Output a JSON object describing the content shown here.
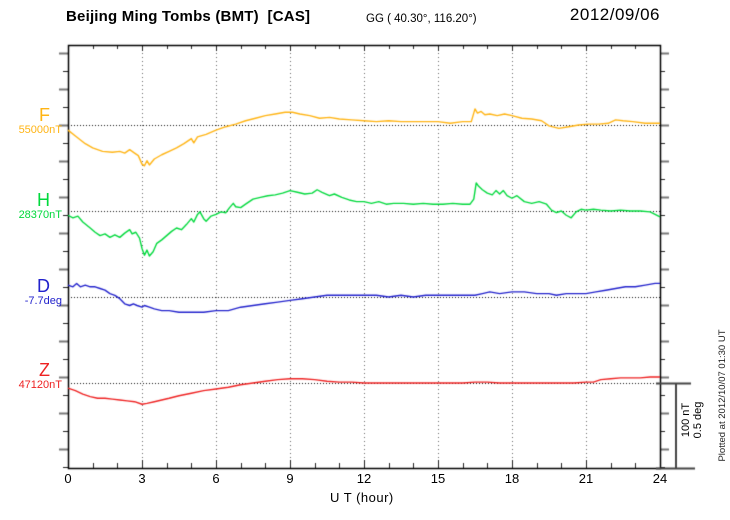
{
  "header": {
    "station_title": "Beijing Ming Tombs (BMT)  [CAS]",
    "coords": "GG ( 40.30°, 116.20°)",
    "date": "2012/09/06"
  },
  "xaxis": {
    "ticks": [
      "0",
      "3",
      "6",
      "9",
      "12",
      "15",
      "18",
      "21",
      "24"
    ],
    "label": "U T (hour)"
  },
  "scalebar": {
    "line1": "100 nT",
    "line2": "0.5 deg"
  },
  "footnote": "Plotted at 2012/10/07 01:30 UT",
  "colors": {
    "frame": "#000000",
    "grid": "#666666",
    "refline": "#111111",
    "tick_long": "#777777",
    "tick_short": "#222222",
    "scalebar": "#444444"
  },
  "chart_data": {
    "type": "line",
    "title": "Beijing Ming Tombs (BMT) magnetogram",
    "xlabel": "U T (hour)",
    "x_range": [
      0,
      24
    ],
    "x_major_step": 3,
    "x_minor_step": 1,
    "grid": "dotted-vertical-at-3h",
    "scale_per_division": {
      "nT": 100,
      "deg": 0.5
    },
    "series": [
      {
        "id": "F",
        "label": "F",
        "unit": "nT",
        "baseline_label": "55000nT",
        "baseline_value": 55000,
        "color": "#ffb414",
        "points_are": [
          "hour_UT",
          "offset_from_baseline_nT"
        ],
        "points": [
          [
            0,
            -6
          ],
          [
            0.3,
            -13
          ],
          [
            0.7,
            -22
          ],
          [
            1,
            -27
          ],
          [
            1.4,
            -31
          ],
          [
            1.8,
            -32
          ],
          [
            2.1,
            -31
          ],
          [
            2.3,
            -33
          ],
          [
            2.5,
            -29
          ],
          [
            2.7,
            -33
          ],
          [
            2.85,
            -36
          ],
          [
            3,
            -46
          ],
          [
            3.1,
            -48
          ],
          [
            3.2,
            -42
          ],
          [
            3.3,
            -47
          ],
          [
            3.5,
            -40
          ],
          [
            3.8,
            -35
          ],
          [
            4.1,
            -31
          ],
          [
            4.4,
            -27
          ],
          [
            4.7,
            -22
          ],
          [
            5,
            -16
          ],
          [
            5.1,
            -21
          ],
          [
            5.25,
            -14
          ],
          [
            5.6,
            -11
          ],
          [
            6,
            -6
          ],
          [
            6.4,
            -2
          ],
          [
            6.8,
            1
          ],
          [
            7.2,
            5
          ],
          [
            7.6,
            8
          ],
          [
            8,
            11
          ],
          [
            8.4,
            13
          ],
          [
            8.8,
            15
          ],
          [
            9.1,
            15
          ],
          [
            9.4,
            13
          ],
          [
            9.8,
            11
          ],
          [
            10.2,
            8
          ],
          [
            10.6,
            9
          ],
          [
            11,
            7
          ],
          [
            11.5,
            6
          ],
          [
            12,
            5
          ],
          [
            12.5,
            4
          ],
          [
            13,
            5
          ],
          [
            13.5,
            4
          ],
          [
            14,
            4
          ],
          [
            14.5,
            4
          ],
          [
            15,
            4
          ],
          [
            15.5,
            2
          ],
          [
            16,
            4
          ],
          [
            16.35,
            4
          ],
          [
            16.5,
            19
          ],
          [
            16.6,
            14
          ],
          [
            16.75,
            16
          ],
          [
            16.9,
            12
          ],
          [
            17.1,
            13
          ],
          [
            17.4,
            11
          ],
          [
            17.7,
            13
          ],
          [
            18,
            11
          ],
          [
            18.4,
            8
          ],
          [
            18.8,
            7
          ],
          [
            19.2,
            5
          ],
          [
            19.5,
            -1
          ],
          [
            19.9,
            -4
          ],
          [
            20.3,
            -2
          ],
          [
            20.7,
            0
          ],
          [
            21.1,
            1
          ],
          [
            21.5,
            1
          ],
          [
            21.9,
            2
          ],
          [
            22.2,
            6
          ],
          [
            22.5,
            5
          ],
          [
            22.9,
            4
          ],
          [
            23.4,
            2
          ],
          [
            24,
            2
          ]
        ]
      },
      {
        "id": "H",
        "label": "H",
        "unit": "nT",
        "baseline_label": "28370nT",
        "baseline_value": 28370,
        "color": "#00d93c",
        "points_are": [
          "hour_UT",
          "offset_from_baseline_nT"
        ],
        "points": [
          [
            0,
            -5
          ],
          [
            0.2,
            -8
          ],
          [
            0.4,
            -6
          ],
          [
            0.6,
            -13
          ],
          [
            0.9,
            -20
          ],
          [
            1.1,
            -25
          ],
          [
            1.3,
            -29
          ],
          [
            1.5,
            -27
          ],
          [
            1.7,
            -31
          ],
          [
            1.9,
            -28
          ],
          [
            2.1,
            -31
          ],
          [
            2.3,
            -26
          ],
          [
            2.5,
            -22
          ],
          [
            2.6,
            -27
          ],
          [
            2.75,
            -25
          ],
          [
            2.9,
            -32
          ],
          [
            3,
            -44
          ],
          [
            3.1,
            -52
          ],
          [
            3.2,
            -46
          ],
          [
            3.3,
            -53
          ],
          [
            3.45,
            -48
          ],
          [
            3.6,
            -38
          ],
          [
            3.8,
            -34
          ],
          [
            4,
            -29
          ],
          [
            4.2,
            -24
          ],
          [
            4.4,
            -20
          ],
          [
            4.6,
            -22
          ],
          [
            4.8,
            -16
          ],
          [
            5,
            -9
          ],
          [
            5.1,
            -13
          ],
          [
            5.25,
            -4
          ],
          [
            5.35,
            -1
          ],
          [
            5.5,
            -9
          ],
          [
            5.6,
            -12
          ],
          [
            5.8,
            -6
          ],
          [
            6,
            -4
          ],
          [
            6.2,
            -1
          ],
          [
            6.4,
            -2
          ],
          [
            6.55,
            4
          ],
          [
            6.7,
            9
          ],
          [
            6.8,
            5
          ],
          [
            7,
            4
          ],
          [
            7.2,
            8
          ],
          [
            7.5,
            14
          ],
          [
            7.8,
            16
          ],
          [
            8.1,
            18
          ],
          [
            8.4,
            19
          ],
          [
            8.7,
            21
          ],
          [
            9,
            24
          ],
          [
            9.3,
            22
          ],
          [
            9.6,
            20
          ],
          [
            9.9,
            21
          ],
          [
            10.1,
            25
          ],
          [
            10.3,
            22
          ],
          [
            10.6,
            18
          ],
          [
            10.8,
            20
          ],
          [
            11.1,
            16
          ],
          [
            11.4,
            13
          ],
          [
            11.7,
            11
          ],
          [
            12,
            11
          ],
          [
            12.3,
            9
          ],
          [
            12.6,
            11
          ],
          [
            12.9,
            8
          ],
          [
            13.2,
            9
          ],
          [
            13.6,
            9
          ],
          [
            14,
            8
          ],
          [
            14.4,
            9
          ],
          [
            14.8,
            8
          ],
          [
            15.2,
            8
          ],
          [
            15.6,
            9
          ],
          [
            16,
            8
          ],
          [
            16.3,
            8
          ],
          [
            16.45,
            14
          ],
          [
            16.55,
            33
          ],
          [
            16.65,
            29
          ],
          [
            16.8,
            25
          ],
          [
            17,
            21
          ],
          [
            17.2,
            19
          ],
          [
            17.35,
            24
          ],
          [
            17.5,
            20
          ],
          [
            17.65,
            24
          ],
          [
            17.8,
            18
          ],
          [
            18,
            15
          ],
          [
            18.2,
            18
          ],
          [
            18.5,
            11
          ],
          [
            18.8,
            9
          ],
          [
            19.1,
            11
          ],
          [
            19.4,
            8
          ],
          [
            19.6,
            1
          ],
          [
            19.8,
            -2
          ],
          [
            20,
            0
          ],
          [
            20.2,
            -5
          ],
          [
            20.4,
            -8
          ],
          [
            20.6,
            -1
          ],
          [
            20.8,
            2
          ],
          [
            21,
            1
          ],
          [
            21.3,
            2
          ],
          [
            21.6,
            1
          ],
          [
            22,
            0
          ],
          [
            22.4,
            1
          ],
          [
            22.8,
            0
          ],
          [
            23.2,
            0
          ],
          [
            23.6,
            -1
          ],
          [
            24,
            -7
          ]
        ]
      },
      {
        "id": "D",
        "label": "D",
        "unit": "deg",
        "baseline_label": "-7.7deg",
        "baseline_value": -7.7,
        "color": "#2222cc",
        "points_are": [
          "hour_UT",
          "offset_from_baseline_deg"
        ],
        "points": [
          [
            0,
            0.07
          ],
          [
            0.2,
            0.06
          ],
          [
            0.35,
            0.08
          ],
          [
            0.5,
            0.06
          ],
          [
            0.7,
            0.07
          ],
          [
            0.9,
            0.06
          ],
          [
            1.1,
            0.06
          ],
          [
            1.3,
            0.05
          ],
          [
            1.5,
            0.04
          ],
          [
            1.7,
            0.02
          ],
          [
            1.9,
            0.01
          ],
          [
            2.1,
            -0.01
          ],
          [
            2.3,
            -0.04
          ],
          [
            2.5,
            -0.05
          ],
          [
            2.65,
            -0.04
          ],
          [
            2.8,
            -0.05
          ],
          [
            3,
            -0.06
          ],
          [
            3.1,
            -0.05
          ],
          [
            3.3,
            -0.06
          ],
          [
            3.5,
            -0.07
          ],
          [
            3.8,
            -0.08
          ],
          [
            4.1,
            -0.08
          ],
          [
            4.5,
            -0.09
          ],
          [
            5,
            -0.09
          ],
          [
            5.5,
            -0.09
          ],
          [
            6,
            -0.08
          ],
          [
            6.5,
            -0.08
          ],
          [
            7,
            -0.06
          ],
          [
            7.5,
            -0.05
          ],
          [
            8,
            -0.04
          ],
          [
            8.5,
            -0.03
          ],
          [
            9,
            -0.02
          ],
          [
            9.5,
            -0.01
          ],
          [
            10,
            0
          ],
          [
            10.5,
            0.01
          ],
          [
            11,
            0.01
          ],
          [
            11.5,
            0.01
          ],
          [
            12,
            0.01
          ],
          [
            12.5,
            0.01
          ],
          [
            13,
            0
          ],
          [
            13.5,
            0.01
          ],
          [
            14,
            0
          ],
          [
            14.5,
            0.01
          ],
          [
            15,
            0.01
          ],
          [
            15.5,
            0.01
          ],
          [
            16,
            0.01
          ],
          [
            16.5,
            0.01
          ],
          [
            16.8,
            0.02
          ],
          [
            17.1,
            0.03
          ],
          [
            17.5,
            0.02
          ],
          [
            18,
            0.03
          ],
          [
            18.5,
            0.03
          ],
          [
            19,
            0.02
          ],
          [
            19.5,
            0.02
          ],
          [
            19.8,
            0.01
          ],
          [
            20.2,
            0.02
          ],
          [
            20.6,
            0.02
          ],
          [
            21,
            0.02
          ],
          [
            21.4,
            0.03
          ],
          [
            21.8,
            0.04
          ],
          [
            22.2,
            0.05
          ],
          [
            22.6,
            0.06
          ],
          [
            23,
            0.06
          ],
          [
            23.4,
            0.07
          ],
          [
            23.8,
            0.08
          ],
          [
            24,
            0.08
          ]
        ]
      },
      {
        "id": "Z",
        "label": "Z",
        "unit": "nT",
        "baseline_label": "47120nT",
        "baseline_value": 47120,
        "color": "#ee2222",
        "points_are": [
          "hour_UT",
          "offset_from_baseline_nT"
        ],
        "points": [
          [
            0,
            -6
          ],
          [
            0.3,
            -9
          ],
          [
            0.6,
            -13
          ],
          [
            0.9,
            -16
          ],
          [
            1.2,
            -18
          ],
          [
            1.5,
            -18
          ],
          [
            1.8,
            -19
          ],
          [
            2.1,
            -20
          ],
          [
            2.4,
            -21
          ],
          [
            2.7,
            -22
          ],
          [
            3,
            -25
          ],
          [
            3.2,
            -24
          ],
          [
            3.5,
            -22
          ],
          [
            3.8,
            -20
          ],
          [
            4.1,
            -18
          ],
          [
            4.5,
            -15
          ],
          [
            5,
            -12
          ],
          [
            5.5,
            -9
          ],
          [
            6,
            -7
          ],
          [
            6.5,
            -5
          ],
          [
            7,
            -2
          ],
          [
            7.5,
            0
          ],
          [
            8,
            2
          ],
          [
            8.5,
            4
          ],
          [
            9,
            5
          ],
          [
            9.5,
            5
          ],
          [
            10,
            4
          ],
          [
            10.5,
            2
          ],
          [
            11,
            1
          ],
          [
            11.5,
            1
          ],
          [
            12,
            0
          ],
          [
            12.5,
            0
          ],
          [
            13,
            0
          ],
          [
            13.5,
            0
          ],
          [
            14,
            0
          ],
          [
            14.5,
            0
          ],
          [
            15,
            0
          ],
          [
            15.5,
            0
          ],
          [
            16,
            0
          ],
          [
            16.5,
            1
          ],
          [
            17,
            1
          ],
          [
            17.5,
            0
          ],
          [
            18,
            0
          ],
          [
            18.5,
            0
          ],
          [
            19,
            0
          ],
          [
            19.5,
            0
          ],
          [
            20,
            0
          ],
          [
            20.5,
            0
          ],
          [
            21,
            1
          ],
          [
            21.3,
            1
          ],
          [
            21.6,
            4
          ],
          [
            22,
            5
          ],
          [
            22.4,
            6
          ],
          [
            22.8,
            6
          ],
          [
            23.2,
            6
          ],
          [
            23.6,
            7
          ],
          [
            24,
            7
          ]
        ]
      }
    ]
  }
}
